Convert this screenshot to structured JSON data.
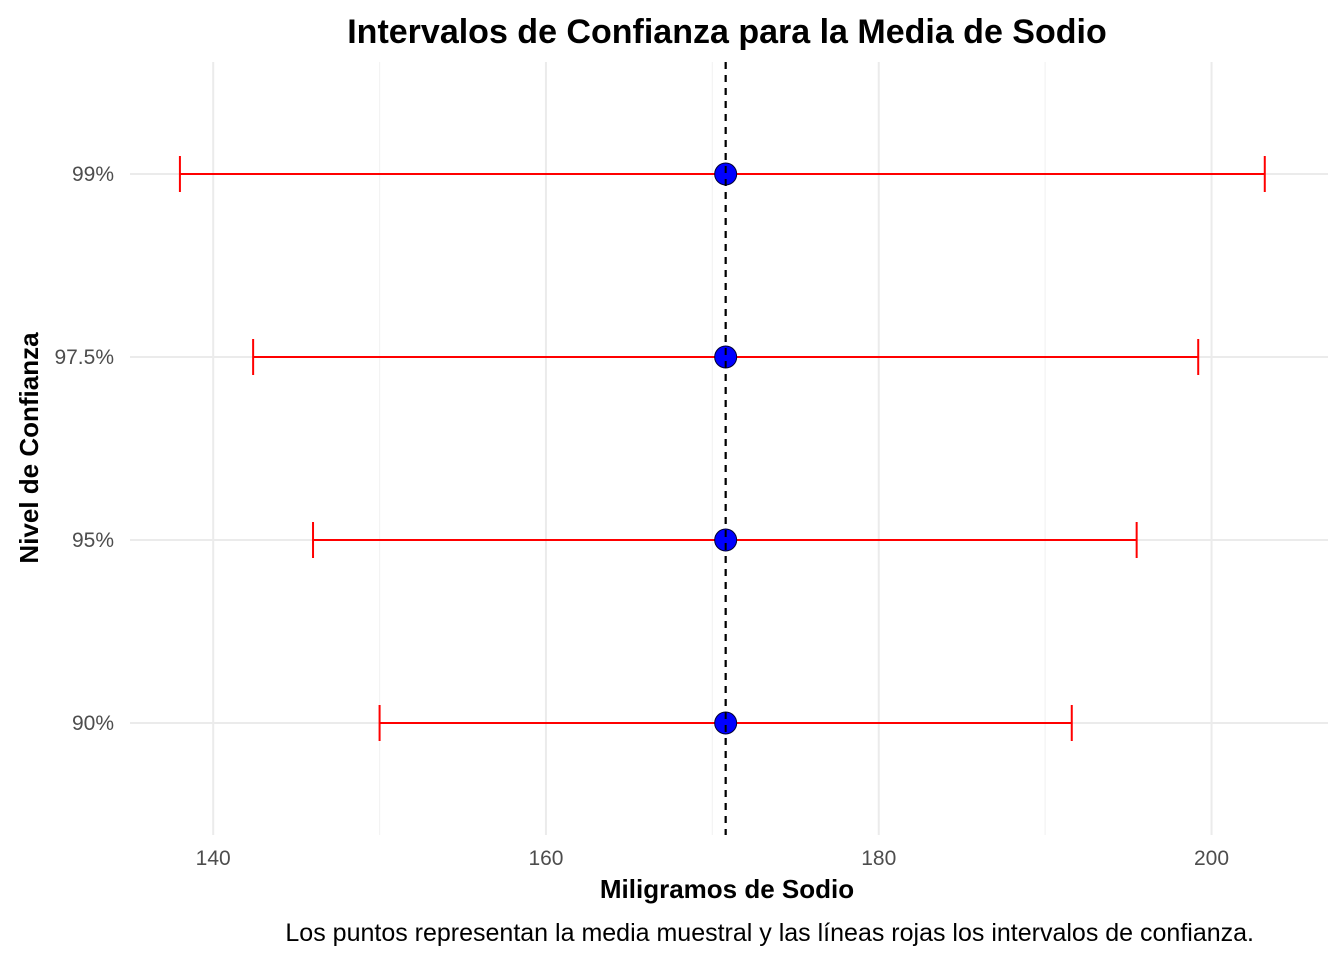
{
  "chart_data": {
    "type": "errorbar",
    "title": "Intervalos de Confianza para la Media de Sodio",
    "xlabel": "Miligramos de Sodio",
    "ylabel": "Nivel de Confianza",
    "caption": "Los puntos representan la media muestral y las líneas rojas los intervalos de confianza.",
    "xlim": [
      135,
      207
    ],
    "x_ticks": [
      140,
      160,
      180,
      200
    ],
    "categories": [
      "90%",
      "95%",
      "97.5%",
      "99%"
    ],
    "mean": 170.8,
    "mean_line": "dashed",
    "intervals": [
      {
        "level": "90%",
        "lower": 150.0,
        "upper": 191.6
      },
      {
        "level": "95%",
        "lower": 146.0,
        "upper": 195.5
      },
      {
        "level": "97.5%",
        "lower": 142.4,
        "upper": 199.2
      },
      {
        "level": "99%",
        "lower": 138.0,
        "upper": 203.2
      }
    ],
    "grid": true,
    "colors": {
      "interval": "#ff0000",
      "point": "#0000ff",
      "mean_line": "#000000"
    }
  }
}
